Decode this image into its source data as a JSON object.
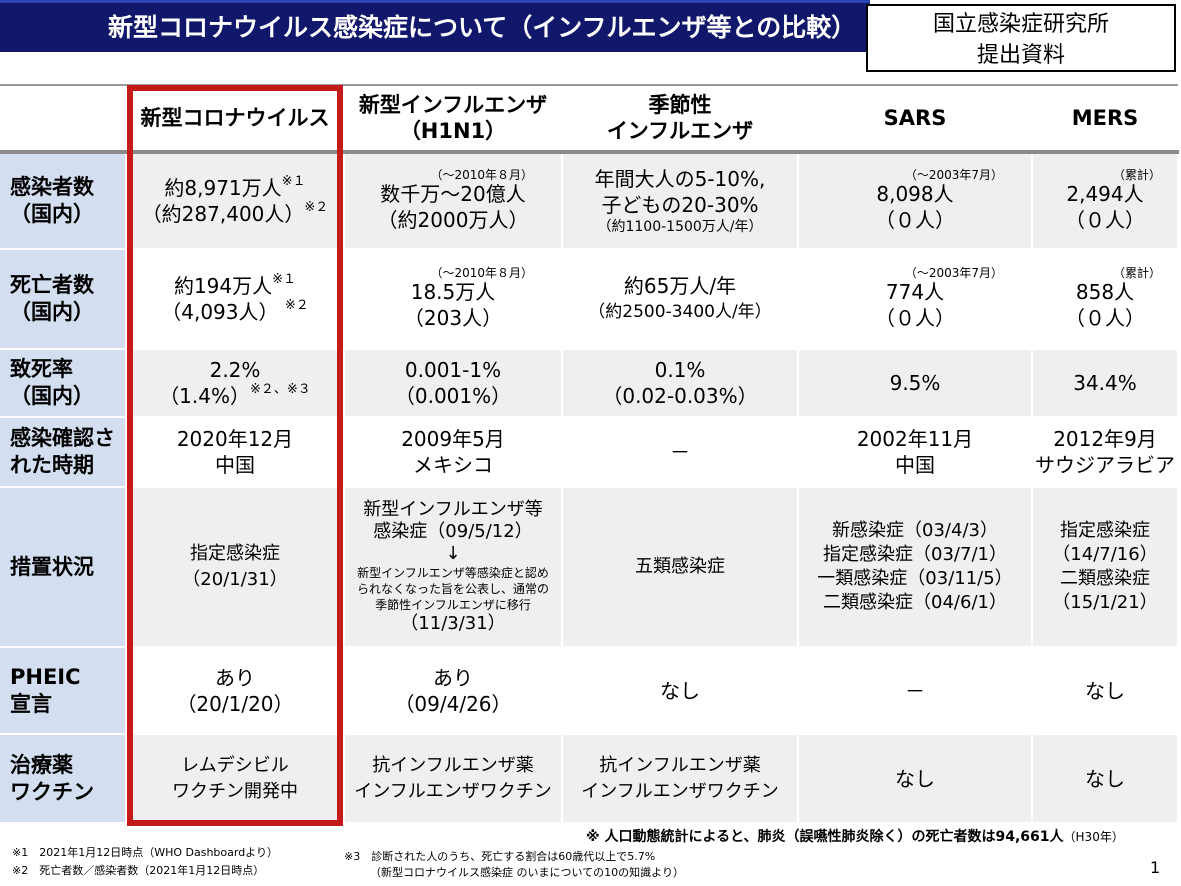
{
  "title": "新型コロナウイルス感染症について（インフルエンザ等との比較）",
  "source_box": {
    "line1": "国立感染症研究所",
    "line2": "提出資料"
  },
  "columns": [
    {
      "line1": "",
      "line2": ""
    },
    {
      "line1": "新型コロナウイルス",
      "line2": ""
    },
    {
      "line1": "新型インフルエンザ",
      "line2": "（H1N1）"
    },
    {
      "line1": "季節性",
      "line2": "インフルエンザ"
    },
    {
      "line1": "SARS",
      "line2": ""
    },
    {
      "line1": "MERS",
      "line2": ""
    }
  ],
  "rows": [
    {
      "label1": "感染者数",
      "label2": "（国内）",
      "covid": {
        "l1": "約8,971万人",
        "s1": "※１",
        "l2": "（約287,400人）",
        "s2": "※２"
      },
      "h1n1": {
        "note": "（～2010年８月）",
        "l1": "数千万～20億人",
        "l2": "（約2000万人）"
      },
      "seasonal": {
        "l1": "年間大人の5-10%,",
        "l2": "子どもの20-30%",
        "l3": "（約1100-1500万人/年）"
      },
      "sars": {
        "note": "（～2003年7月）",
        "l1": "8,098人",
        "l2": "（０人）"
      },
      "mers": {
        "note": "（累計）",
        "l1": "2,494人",
        "l2": "（０人）"
      }
    },
    {
      "label1": "死亡者数",
      "label2": "（国内）",
      "covid": {
        "l1": "約194万人",
        "s1": "※１",
        "l2": "（4,093人）",
        "s2": "※２"
      },
      "h1n1": {
        "note": "（～2010年８月）",
        "l1": "18.5万人",
        "l2": "（203人）"
      },
      "seasonal": {
        "l1": "約65万人/年",
        "l2": "（約2500-3400人/年）"
      },
      "sars": {
        "note": "（～2003年7月）",
        "l1": "774人",
        "l2": "（０人）"
      },
      "mers": {
        "note": "（累計）",
        "l1": "858人",
        "l2": "（０人）"
      }
    },
    {
      "label1": "致死率",
      "label2": "（国内）",
      "covid": {
        "l1": "2.2%",
        "l2": "（1.4%）",
        "s2": "※２、※３"
      },
      "h1n1": {
        "l1": "0.001-1%",
        "l2": "（0.001%）"
      },
      "seasonal": {
        "l1": "0.1%",
        "l2": "（0.02-0.03%）"
      },
      "sars": {
        "l1": "9.5%"
      },
      "mers": {
        "l1": "34.4%"
      }
    },
    {
      "label1": "感染確認さ",
      "label2": "れた時期",
      "covid": {
        "l1": "2020年12月",
        "l2": "中国"
      },
      "h1n1": {
        "l1": "2009年5月",
        "l2": "メキシコ"
      },
      "seasonal": {
        "l1": "－"
      },
      "sars": {
        "l1": "2002年11月",
        "l2": "中国"
      },
      "mers": {
        "l1": "2012年9月",
        "l2": "サウジアラビア"
      }
    },
    {
      "label1": "措置状況",
      "label2": "",
      "covid": {
        "l1": "指定感染症",
        "l2": "（20/1/31）"
      },
      "h1n1": {
        "l1": "新型インフルエンザ等",
        "l2": "感染症（09/5/12）",
        "arrow": "↓",
        "small1": "新型インフルエンザ等感染症と認め",
        "small2": "られなくなった旨を公表し、通常の",
        "small3": "季節性インフルエンザに移行",
        "l3": "（11/3/31）"
      },
      "seasonal": {
        "l1": "五類感染症"
      },
      "sars": {
        "l1": "新感染症（03/4/3）",
        "l2": "指定感染症（03/7/1）",
        "l3": "一類感染症（03/11/5）",
        "l4": "二類感染症（04/6/1）"
      },
      "mers": {
        "l1": "指定感染症",
        "l2": "（14/7/16）",
        "l3": "二類感染症",
        "l4": "（15/1/21）"
      }
    },
    {
      "label1": "PHEIC",
      "label2": "宣言",
      "covid": {
        "l1": "あり",
        "l2": "（20/1/20）"
      },
      "h1n1": {
        "l1": "あり",
        "l2": "（09/4/26）"
      },
      "seasonal": {
        "l1": "なし"
      },
      "sars": {
        "l1": "－"
      },
      "mers": {
        "l1": "なし"
      }
    },
    {
      "label1": "治療薬",
      "label2": "ワクチン",
      "covid": {
        "l1": "レムデシビル",
        "l2": "ワクチン開発中"
      },
      "h1n1": {
        "l1": "抗インフルエンザ薬",
        "l2": "インフルエンザワクチン"
      },
      "seasonal": {
        "l1": "抗インフルエンザ薬",
        "l2": "インフルエンザワクチン"
      },
      "sars": {
        "l1": "なし"
      },
      "mers": {
        "l1": "なし"
      }
    }
  ],
  "footnotes": {
    "right_main": "※ 人口動態統計によると、肺炎（誤嚥性肺炎除く）の死亡者数は94,661人",
    "right_suffix": "（H30年）",
    "fn1": "※1　2021年1月12日時点（WHO Dashboardより）",
    "fn2": "※2　死亡者数／感染者数（2021年1月12日時点）",
    "fn3a": "※3　診断された人のうち、死亡する割合は60歳代以上で5.7%",
    "fn3b": "（新型コロナウイルス感染症 のいまについての10の知識より）"
  },
  "page_number": "1",
  "colors": {
    "title_bg": "#11176a",
    "label_bg": "#d3dff0",
    "highlight_frame": "#c41a1a"
  }
}
